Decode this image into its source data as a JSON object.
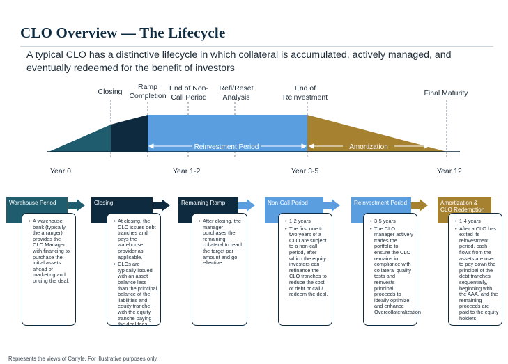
{
  "title": "CLO Overview — The Lifecycle",
  "subtitle": "A typical CLO has a distinctive lifecycle in which collateral is accumulated, actively managed, and eventually redeemed for the benefit of investors",
  "colors": {
    "teal": "#1e5c6e",
    "navy": "#0d2a3f",
    "blue": "#5b9ee0",
    "gold": "#a6812f"
  },
  "timeline": {
    "milestones": [
      {
        "line1": "Closing",
        "line2": ""
      },
      {
        "line1": "Ramp",
        "line2": "Completion"
      },
      {
        "line1": "End of Non-",
        "line2": "Call Period"
      },
      {
        "line1": "Refi/Reset",
        "line2": "Analysis"
      },
      {
        "line1": "End of",
        "line2": "Reinvestment"
      },
      {
        "line1": "Final Maturity",
        "line2": ""
      }
    ],
    "years": [
      "Year 0",
      "Year 1-2",
      "Year 3-5",
      "Year 12"
    ],
    "reinvestment_label": "Reinvestment Period",
    "amortization_label": "Amortization"
  },
  "stages": [
    {
      "title": "Warehouse Period",
      "bullets": [
        "A warehouse bank (typically the arranger) provides the CLO Manager with financing to purchase the initial assets ahead of marketing and pricing the deal."
      ]
    },
    {
      "title": "Closing",
      "bullets": [
        "At closing, the CLO issues debt tranches and pays the warehouse provider as applicable.",
        "CLOs are typically issued with an asset balance less than the principal balance of the liabilities and equity tranche, with the equity tranche paying the deal fees."
      ]
    },
    {
      "title": "Remaining Ramp",
      "bullets": [
        "After closing, the manager purchases the remaining collateral to reach the target par amount and go effective."
      ]
    },
    {
      "title": "Non-Call Period",
      "bullets": [
        "1-2 years",
        "The first one to two years of a CLO are subject to a non-call period, after which the equity investors can refinance the CLO tranches to reduce the cost of debt or call / redeem the deal."
      ]
    },
    {
      "title": "Reinvestment Period",
      "bullets": [
        "3-5 years",
        "The CLO manager actively trades the portfolio to ensure the CLO remains in compliance with collateral quality tests and reinvests principal proceeds to ideally optimize and enhance Overcollateralization"
      ]
    },
    {
      "title": "Amortization & CLO Redemption",
      "bullets": [
        "1-4 years",
        "After a CLO has exited its reinvestment period, cash flows from the assets are used to pay down the principal of the debt tranches sequentially, beginning with the AAA, and the remaining proceeds are paid to the equity holders."
      ]
    }
  ],
  "footer": "Represents the views of Carlyle. For illustrative purposes only."
}
